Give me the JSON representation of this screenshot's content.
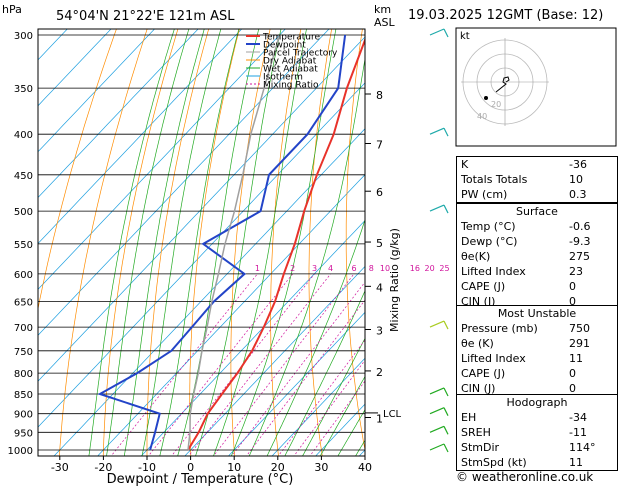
{
  "header": {
    "hpa_label": "hPa",
    "location": "54°04'N  21°22'E  121m  ASL",
    "km_label": "km",
    "asl_label": "ASL",
    "date": "19.03.2025  12GMT  (Base: 12)"
  },
  "chart_data": {
    "type": "line",
    "title": "54°04'N  21°22'E  121m  ASL",
    "xlabel": "Dewpoint / Temperature (°C)",
    "ylabel": "hPa",
    "mixing_ratio_axis_label": "Mixing Ratio (g/kg)",
    "xlim": [
      -35,
      40
    ],
    "ylim": [
      1000,
      300
    ],
    "y_scale": "log",
    "x_ticks": [
      -30,
      -20,
      -10,
      0,
      10,
      20,
      30,
      40
    ],
    "p_ticks": [
      300,
      350,
      400,
      450,
      500,
      550,
      600,
      650,
      700,
      750,
      800,
      850,
      900,
      950,
      1000
    ],
    "km_ticks": [
      {
        "km": "1",
        "p": 910
      },
      {
        "km": "2",
        "p": 795
      },
      {
        "km": "3",
        "p": 705
      },
      {
        "km": "4",
        "p": 622
      },
      {
        "km": "5",
        "p": 547
      },
      {
        "km": "6",
        "p": 472
      },
      {
        "km": "7",
        "p": 411
      },
      {
        "km": "8",
        "p": 356
      }
    ],
    "lcl": {
      "label": "LCL",
      "p": 898
    },
    "mixing_ratio_labels": [
      "1",
      "2",
      "3",
      "4",
      "6",
      "8",
      "10",
      "16",
      "20",
      "25"
    ],
    "legend": [
      {
        "name": "Temperature",
        "color": "#e8322a"
      },
      {
        "name": "Dewpoint",
        "color": "#2344c8"
      },
      {
        "name": "Parcel Trajectory",
        "color": "#a0a0a0"
      },
      {
        "name": "Dry Adiabat",
        "color": "#ff8c00"
      },
      {
        "name": "Wet Adiabat",
        "color": "#22aa22"
      },
      {
        "name": "Isotherm",
        "color": "#1fa0e0"
      },
      {
        "name": "Mixing Ratio",
        "color": "#d0149c"
      }
    ],
    "series": [
      {
        "name": "Temperature",
        "points": [
          [
            -0.6,
            1000
          ],
          [
            -2,
            950
          ],
          [
            -4,
            900
          ],
          [
            -5,
            850
          ],
          [
            -6,
            800
          ],
          [
            -7.5,
            750
          ],
          [
            -10,
            700
          ],
          [
            -13,
            650
          ],
          [
            -17,
            600
          ],
          [
            -21,
            550
          ],
          [
            -26,
            500
          ],
          [
            -31,
            450
          ],
          [
            -36,
            400
          ],
          [
            -43,
            350
          ],
          [
            -50,
            300
          ]
        ]
      },
      {
        "name": "Dewpoint",
        "points": [
          [
            -9.3,
            1000
          ],
          [
            -12,
            950
          ],
          [
            -15,
            900
          ],
          [
            -33,
            850
          ],
          [
            -29,
            800
          ],
          [
            -26,
            750
          ],
          [
            -26.5,
            700
          ],
          [
            -27,
            650
          ],
          [
            -26,
            600
          ],
          [
            -42,
            550
          ],
          [
            -36,
            500
          ],
          [
            -42,
            450
          ],
          [
            -42,
            400
          ],
          [
            -45,
            350
          ],
          [
            -55,
            300
          ]
        ]
      },
      {
        "name": "Parcel Trajectory",
        "points": [
          [
            -0.6,
            1000
          ],
          [
            -4,
            950
          ],
          [
            -8,
            900
          ],
          [
            -11.5,
            850
          ],
          [
            -15,
            800
          ],
          [
            -19,
            750
          ],
          [
            -23,
            700
          ],
          [
            -27.5,
            650
          ],
          [
            -32,
            600
          ],
          [
            -37,
            550
          ],
          [
            -42,
            500
          ],
          [
            -48,
            450
          ],
          [
            -55,
            400
          ],
          [
            -62,
            350
          ],
          [
            -70,
            300
          ]
        ]
      }
    ],
    "winds": [
      {
        "p": 1000,
        "dir": 114,
        "spd": 11
      },
      {
        "p": 950,
        "dir": 130,
        "spd": 15
      },
      {
        "p": 900,
        "dir": 160,
        "spd": 20
      },
      {
        "p": 850,
        "dir": 190,
        "spd": 20
      },
      {
        "p": 700,
        "dir": 280,
        "spd": 10
      },
      {
        "p": 500,
        "dir": 250,
        "spd": 25
      },
      {
        "p": 400,
        "dir": 250,
        "spd": 25
      },
      {
        "p": 300,
        "dir": 220,
        "spd": 30
      }
    ],
    "grid": true
  },
  "hodograph": {
    "label": "kt",
    "ring_labels": [
      "20",
      "40"
    ],
    "points": [
      [
        1,
        0
      ],
      [
        4,
        -2
      ],
      [
        3,
        -5
      ],
      [
        -1,
        -4
      ],
      [
        -2,
        0
      ],
      [
        1,
        2
      ],
      [
        -9,
        10
      ]
    ]
  },
  "indices": [
    {
      "label": "K",
      "value": "-36"
    },
    {
      "label": "Totals Totals",
      "value": "10"
    },
    {
      "label": "PW (cm)",
      "value": "0.3"
    }
  ],
  "surface": {
    "title": "Surface",
    "rows": [
      {
        "label": "Temp (°C)",
        "value": "-0.6"
      },
      {
        "label": "Dewp (°C)",
        "value": "-9.3"
      },
      {
        "label": "θe(K)",
        "value": "275"
      },
      {
        "label": "Lifted Index",
        "value": "23"
      },
      {
        "label": "CAPE (J)",
        "value": "0"
      },
      {
        "label": "CIN (J)",
        "value": "0"
      }
    ]
  },
  "most_unstable": {
    "title": "Most Unstable",
    "rows": [
      {
        "label": "Pressure (mb)",
        "value": "750"
      },
      {
        "label": "θe (K)",
        "value": "291"
      },
      {
        "label": "Lifted Index",
        "value": "11"
      },
      {
        "label": "CAPE (J)",
        "value": "0"
      },
      {
        "label": "CIN (J)",
        "value": "0"
      }
    ]
  },
  "hodo_params": {
    "title": "Hodograph",
    "rows": [
      {
        "label": "EH",
        "value": "-34"
      },
      {
        "label": "SREH",
        "value": "-11"
      },
      {
        "label": "StmDir",
        "value": "114°"
      },
      {
        "label": "StmSpd (kt)",
        "value": "11"
      }
    ]
  },
  "copyright": "© weatheronline.co.uk"
}
